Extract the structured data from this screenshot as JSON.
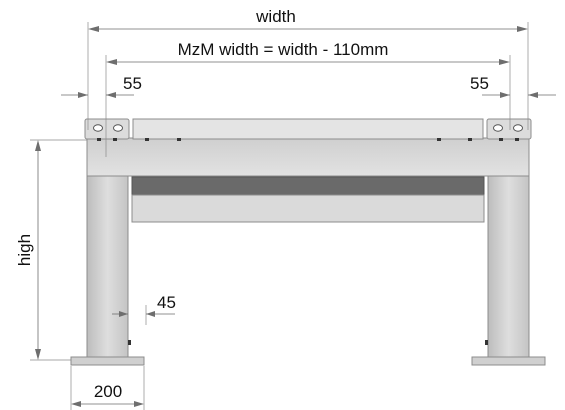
{
  "dimensions": {
    "width_label": "width",
    "mzm_label": "MzM width = width - 110mm",
    "offset_left": "55",
    "offset_right": "55",
    "height_label": "high",
    "post_gap": "45",
    "foot_width": "200"
  },
  "colors": {
    "steel_light": "#d9d9d9",
    "steel_mid": "#c9c9c9",
    "steel_dark": "#6a6a6a",
    "outline": "#8c8c8c",
    "dimension_line": "#6e6e6e"
  }
}
